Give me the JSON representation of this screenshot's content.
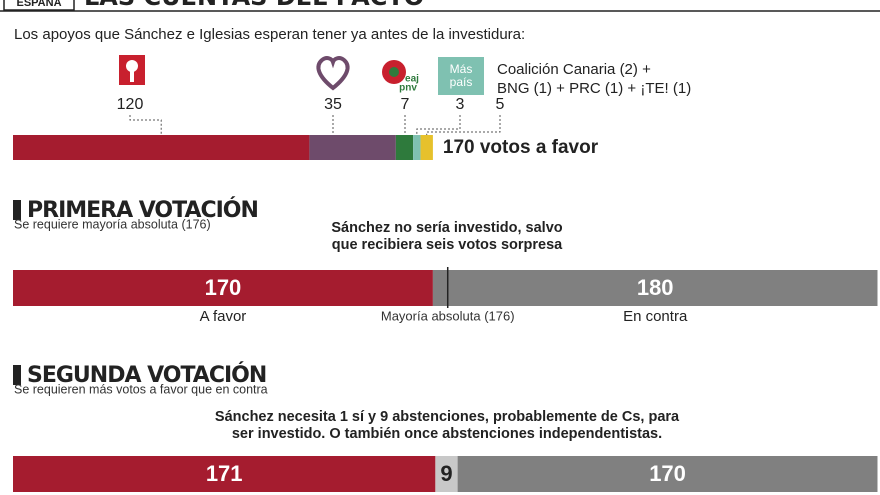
{
  "header": {
    "section": "ESPAÑA",
    "title": "LAS CUENTAS DEL PACTO"
  },
  "support": {
    "title": "Los apoyos que Sánchez e Iglesias esperan tener ya antes de la investidura:",
    "parties": [
      {
        "value": 120,
        "color": "#a51c2f"
      },
      {
        "value": 35,
        "color": "#6e4b6b"
      },
      {
        "value": 7,
        "color": "#2e7a3c",
        "logo_text": [
          "eaj",
          "pnv"
        ]
      },
      {
        "value": 3,
        "color": "#7fc1b1",
        "logo_text": [
          "Más",
          "país"
        ]
      },
      {
        "value": 5,
        "color": "#e6c12c",
        "note": [
          "Coalición Canaria (2) +",
          "BNG (1) + PRC (1) + ¡TE! (1)"
        ]
      }
    ],
    "total_label": "170 votos a favor"
  },
  "first_vote": {
    "title": "PRIMERA VOTACIÓN",
    "subtitle": "Se requiere mayoría absoluta (176)",
    "note": [
      "Sánchez no sería investido, salvo",
      "que recibiera seis votos sorpresa"
    ],
    "segments": [
      {
        "value": 170,
        "label": "A favor",
        "color": "#a51c2f"
      },
      {
        "value": 180,
        "label": "En contra",
        "color": "#808080"
      }
    ],
    "threshold": {
      "value": 176,
      "label": "Mayoría absoluta (176)"
    }
  },
  "second_vote": {
    "title": "SEGUNDA VOTACIÓN",
    "subtitle": "Se requieren más votos a favor que en contra",
    "note": [
      "Sánchez necesita 1 sí y 9 abstenciones, probablemente de Cs, para",
      "ser investido. O también once abstenciones independentistas."
    ],
    "segments": [
      {
        "value": 171,
        "color": "#a51c2f",
        "text_color": "#ffffff"
      },
      {
        "value": 9,
        "color": "#c8c8c8",
        "text_color": "#222222"
      },
      {
        "value": 170,
        "color": "#808080",
        "text_color": "#ffffff"
      }
    ]
  }
}
